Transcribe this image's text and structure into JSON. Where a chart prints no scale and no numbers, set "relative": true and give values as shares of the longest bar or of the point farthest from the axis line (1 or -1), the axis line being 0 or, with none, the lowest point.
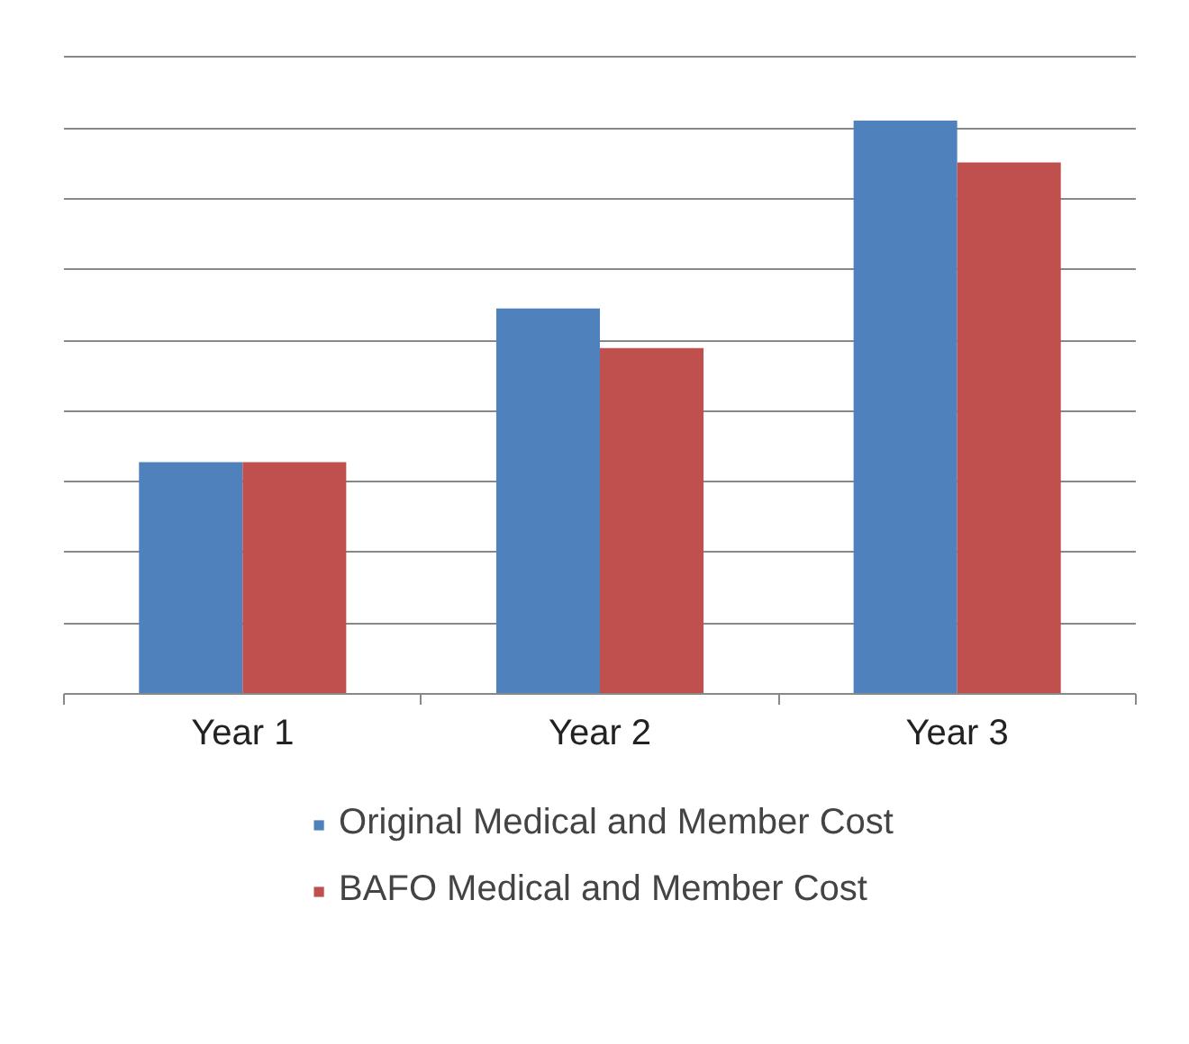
{
  "chart_data": {
    "type": "bar",
    "relative": true,
    "categories": [
      "Year 1",
      "Year 2",
      "Year 3"
    ],
    "series": [
      {
        "name": "Original Medical and Member Cost",
        "color": "#4f81bd",
        "values": [
          0.404,
          0.672,
          1
        ]
      },
      {
        "name": "BAFO Medical and Member Cost",
        "color": "#c0504d",
        "values": [
          0.404,
          0.603,
          0.927
        ]
      }
    ],
    "grid": "y",
    "legend": "bottom"
  }
}
